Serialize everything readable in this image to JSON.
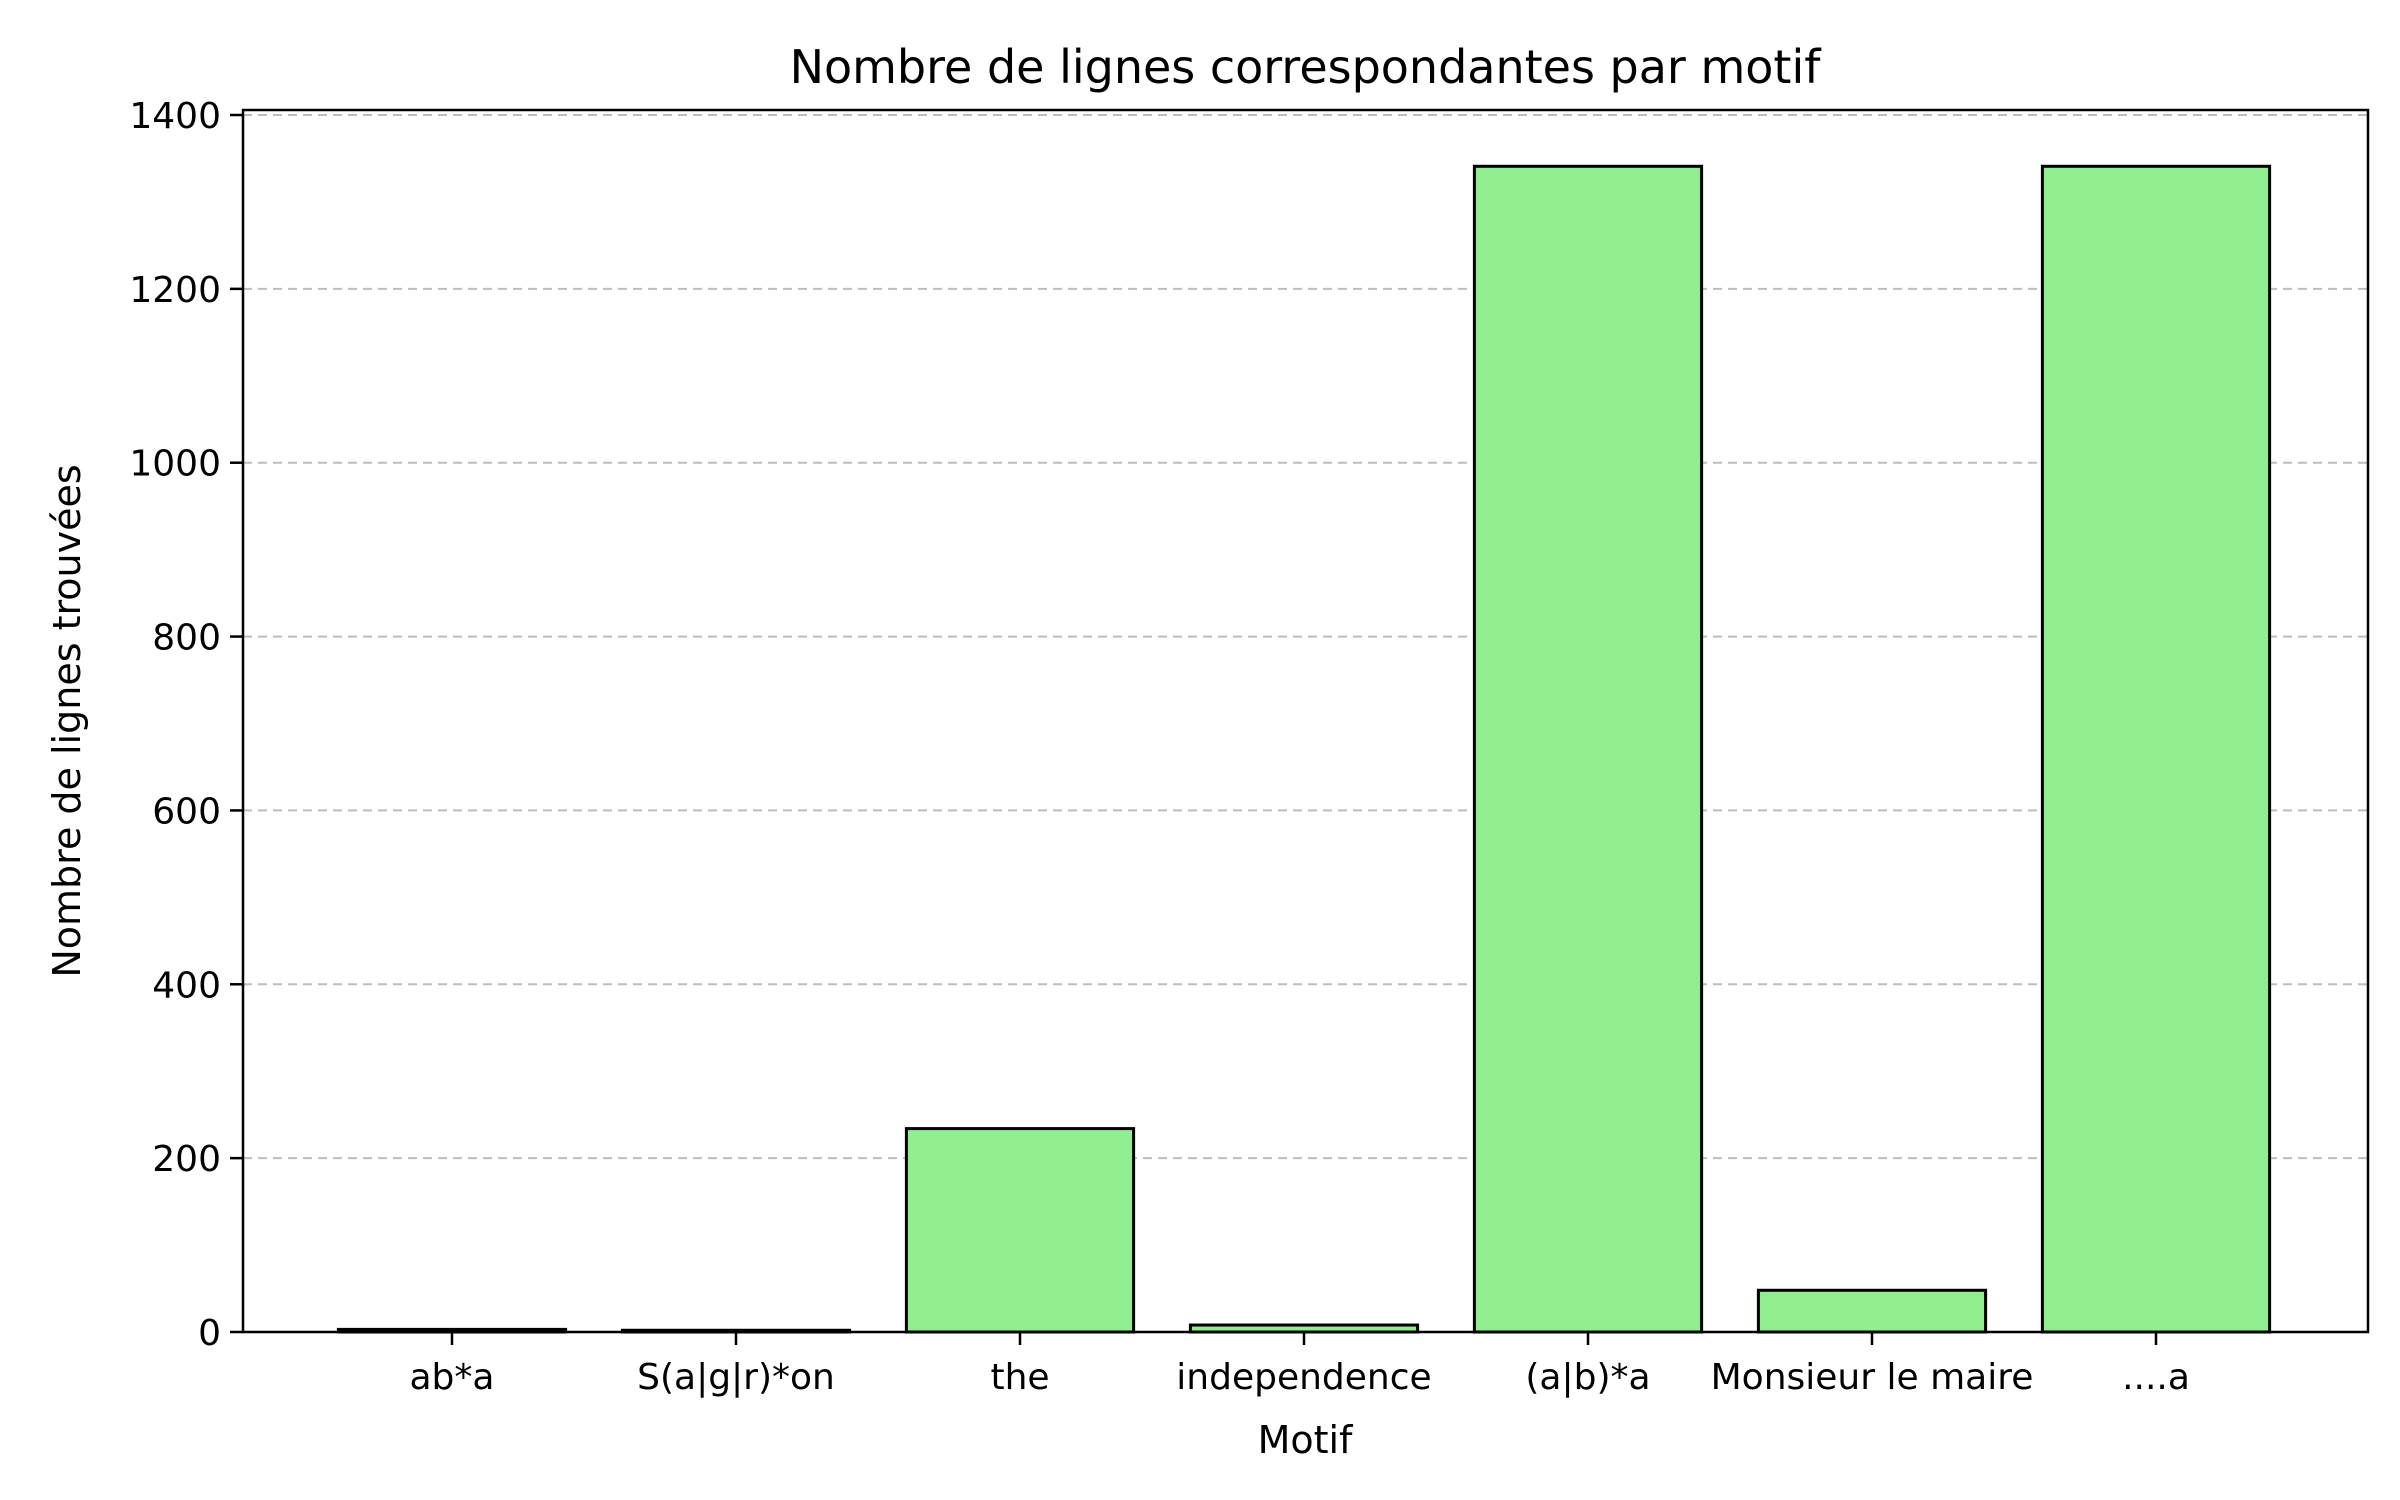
{
  "chart_data": {
    "type": "bar",
    "title": "Nombre de lignes correspondantes par motif",
    "xlabel": "Motif",
    "ylabel": "Nombre de lignes trouvées",
    "categories": [
      "ab*a",
      "S(a|g|r)*on",
      "the",
      "independence",
      "(a|b)*a",
      "Monsieur le maire",
      "....a"
    ],
    "values": [
      3,
      2,
      234,
      8,
      1341,
      48,
      1341
    ],
    "ylim": [
      0,
      1400
    ],
    "yticks": [
      0,
      200,
      400,
      600,
      800,
      1000,
      1200,
      1400
    ],
    "grid": "horizontal dashed",
    "bar_color": "#90ee90",
    "edge_color": "#000000"
  }
}
